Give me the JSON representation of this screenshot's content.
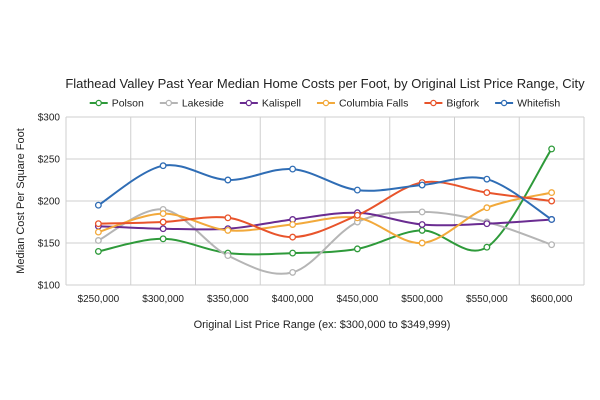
{
  "chart_data": {
    "type": "line",
    "title": "Flathead Valley Past Year Median Home Costs per Foot, by Original List Price Range, City",
    "xlabel": "Original List Price Range (ex: $300,000 to $349,999)",
    "ylabel": "Median Cost Per Square Foot",
    "categories": [
      "$250,000",
      "$300,000",
      "$350,000",
      "$400,000",
      "$450,000",
      "$500,000",
      "$550,000",
      "$600,000"
    ],
    "yticks": [
      "$100",
      "$150",
      "$200",
      "$250",
      "$300"
    ],
    "ylim": [
      100,
      300
    ],
    "grid": true,
    "legend_position": "top",
    "series": [
      {
        "name": "Polson",
        "color": "#2e9a3a",
        "values": [
          140,
          155,
          138,
          138,
          143,
          165,
          145,
          262
        ]
      },
      {
        "name": "Lakeside",
        "color": "#b5b5b5",
        "values": [
          153,
          190,
          135,
          115,
          175,
          187,
          175,
          148
        ]
      },
      {
        "name": "Kalispell",
        "color": "#6a2c91",
        "values": [
          170,
          167,
          167,
          178,
          186,
          172,
          173,
          178
        ]
      },
      {
        "name": "Columbia Falls",
        "color": "#f2a93b",
        "values": [
          163,
          185,
          165,
          172,
          180,
          150,
          192,
          210
        ]
      },
      {
        "name": "Bigfork",
        "color": "#e8542b",
        "values": [
          173,
          175,
          180,
          157,
          183,
          222,
          210,
          200
        ]
      },
      {
        "name": "Whitefish",
        "color": "#2f6db5",
        "values": [
          195,
          242,
          225,
          238,
          213,
          219,
          226,
          178
        ]
      }
    ]
  }
}
